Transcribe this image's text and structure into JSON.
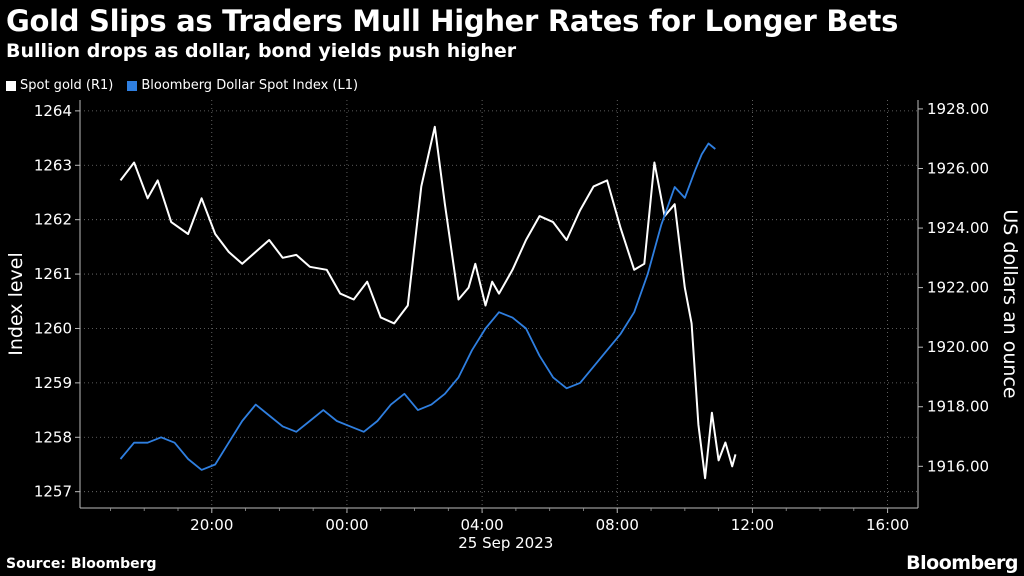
{
  "title": "Gold Slips as Traders Mull Higher Rates for Longer Bets",
  "subtitle": "Bullion drops as dollar, bond yields push higher",
  "legend": [
    {
      "label": "Spot gold (R1)",
      "color": "#ffffff"
    },
    {
      "label": "Bloomberg Dollar Spot Index (L1)",
      "color": "#2f7fe0"
    }
  ],
  "source": "Source: Bloomberg",
  "brand": "Bloomberg",
  "chart_data": {
    "type": "line",
    "xlabel": "25 Sep 2023",
    "x_ticks": [
      "20:00",
      "00:00",
      "04:00",
      "08:00",
      "12:00",
      "16:00"
    ],
    "x_tick_hours": [
      20,
      24,
      28,
      32,
      36,
      40
    ],
    "x_range_hours": [
      16.1,
      40.9
    ],
    "left_axis": {
      "label": "Index level",
      "ticks": [
        1257,
        1258,
        1259,
        1260,
        1261,
        1262,
        1263,
        1264
      ],
      "range": [
        1256.7,
        1264.2
      ]
    },
    "right_axis": {
      "label": "US dollars an ounce",
      "ticks": [
        "1916.00",
        "1918.00",
        "1920.00",
        "1922.00",
        "1924.00",
        "1926.00",
        "1928.00"
      ],
      "range": [
        1914.6,
        1928.3
      ]
    },
    "series": [
      {
        "name": "Spot gold (R1)",
        "axis": "right",
        "color": "#ffffff",
        "x": [
          17.3,
          17.7,
          18.1,
          18.4,
          18.8,
          19.3,
          19.7,
          20.1,
          20.5,
          20.9,
          21.3,
          21.7,
          22.1,
          22.5,
          22.9,
          23.4,
          23.8,
          24.2,
          24.6,
          25.0,
          25.4,
          25.8,
          26.2,
          26.6,
          26.9,
          27.1,
          27.3,
          27.6,
          27.8,
          28.1,
          28.3,
          28.5,
          28.9,
          29.3,
          29.7,
          30.1,
          30.5,
          30.9,
          31.3,
          31.7,
          32.1,
          32.5,
          32.8,
          33.1,
          33.4,
          33.7,
          34.0,
          34.2,
          34.4,
          34.6,
          34.8,
          35.0,
          35.2,
          35.4,
          35.5
        ],
        "y": [
          1925.6,
          1926.2,
          1925.0,
          1925.6,
          1924.2,
          1923.8,
          1925.0,
          1923.8,
          1923.2,
          1922.8,
          1923.2,
          1923.6,
          1923.0,
          1923.1,
          1922.7,
          1922.6,
          1921.8,
          1921.6,
          1922.2,
          1921.0,
          1920.8,
          1921.4,
          1925.4,
          1927.4,
          1924.8,
          1923.2,
          1921.6,
          1922.0,
          1922.8,
          1921.4,
          1922.2,
          1921.8,
          1922.6,
          1923.6,
          1924.4,
          1924.2,
          1923.6,
          1924.6,
          1925.4,
          1925.6,
          1924.0,
          1922.6,
          1922.8,
          1926.2,
          1924.4,
          1924.8,
          1922.0,
          1920.8,
          1917.4,
          1915.6,
          1917.8,
          1916.2,
          1916.8,
          1916.0,
          1916.4
        ]
      },
      {
        "name": "Bloomberg Dollar Spot Index (L1)",
        "axis": "left",
        "color": "#2f7fe0",
        "x": [
          17.3,
          17.7,
          18.1,
          18.5,
          18.9,
          19.3,
          19.7,
          20.1,
          20.5,
          20.9,
          21.3,
          21.7,
          22.1,
          22.5,
          22.9,
          23.3,
          23.7,
          24.1,
          24.5,
          24.9,
          25.3,
          25.7,
          26.1,
          26.5,
          26.9,
          27.3,
          27.7,
          28.1,
          28.5,
          28.9,
          29.3,
          29.7,
          30.1,
          30.5,
          30.9,
          31.3,
          31.7,
          32.1,
          32.5,
          32.9,
          33.3,
          33.7,
          34.0,
          34.3,
          34.5,
          34.7,
          34.9
        ],
        "y": [
          1257.6,
          1257.9,
          1257.9,
          1258.0,
          1257.9,
          1257.6,
          1257.4,
          1257.5,
          1257.9,
          1258.3,
          1258.6,
          1258.4,
          1258.2,
          1258.1,
          1258.3,
          1258.5,
          1258.3,
          1258.2,
          1258.1,
          1258.3,
          1258.6,
          1258.8,
          1258.5,
          1258.6,
          1258.8,
          1259.1,
          1259.6,
          1260.0,
          1260.3,
          1260.2,
          1260.0,
          1259.5,
          1259.1,
          1258.9,
          1259.0,
          1259.3,
          1259.6,
          1259.9,
          1260.3,
          1261.0,
          1261.9,
          1262.6,
          1262.4,
          1262.9,
          1263.2,
          1263.4,
          1263.3
        ]
      }
    ]
  }
}
